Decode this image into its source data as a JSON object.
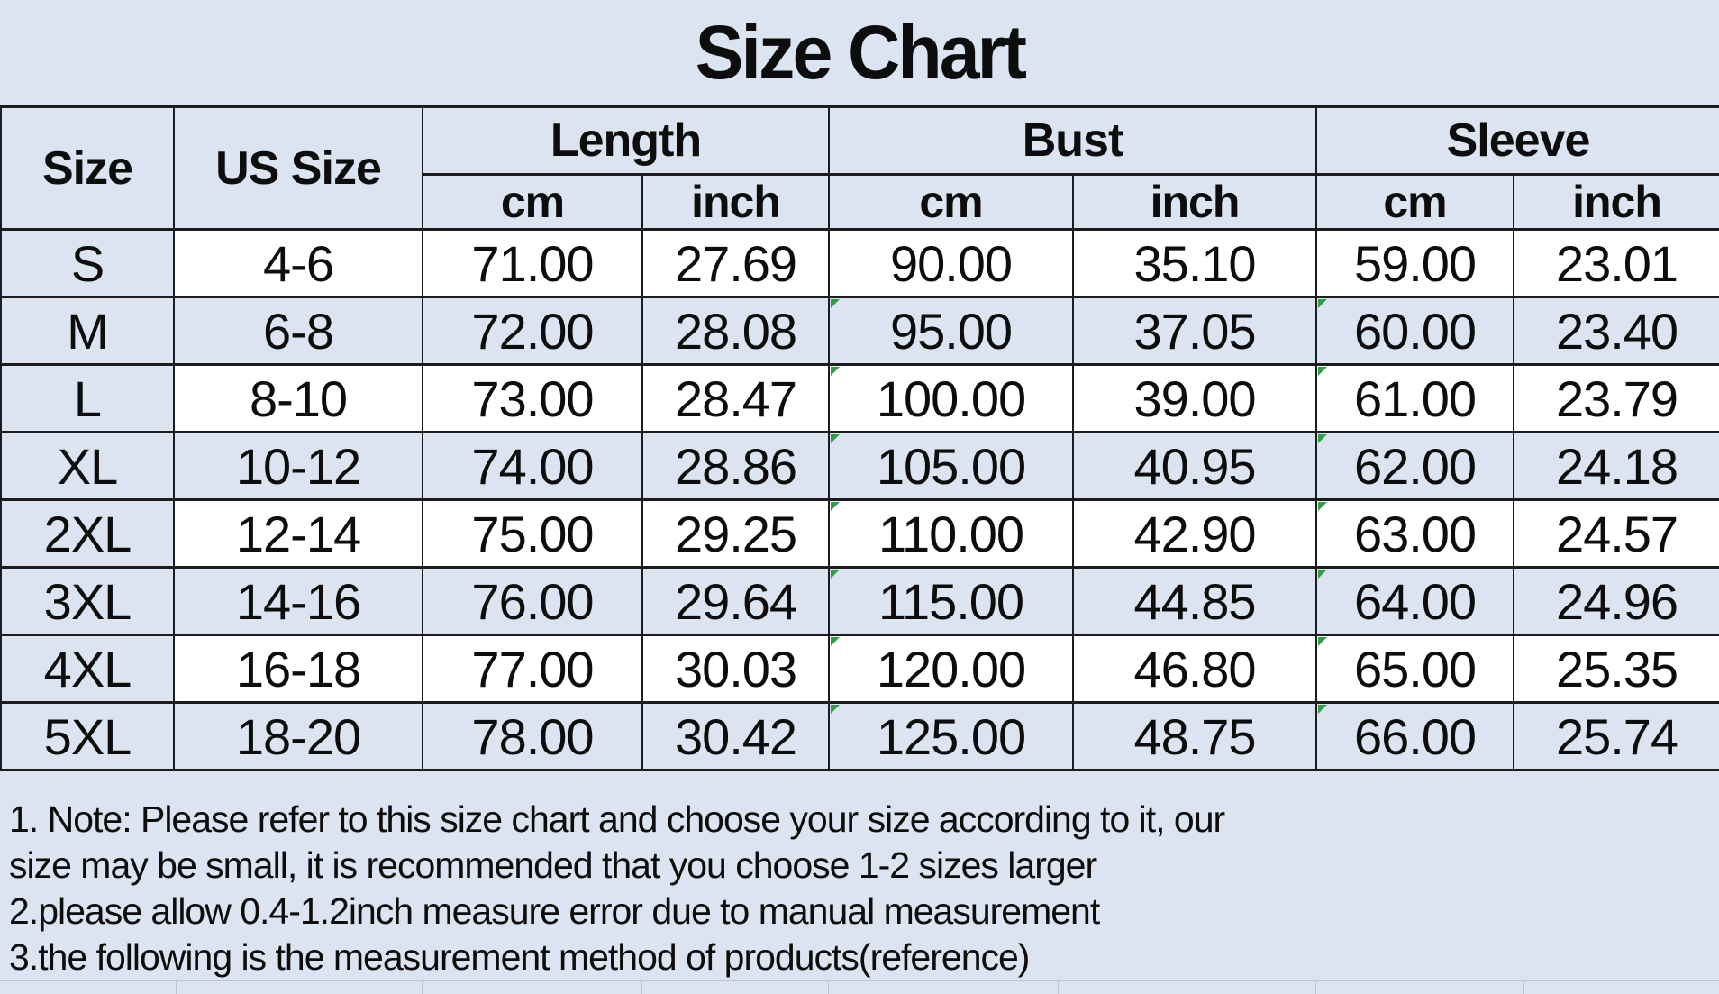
{
  "title": "Size Chart",
  "colors": {
    "background": "#dbe4f0",
    "row_white": "#ffffff",
    "border": "#1c1c1c",
    "faint_grid": "#b9c5d6",
    "flag_green": "#2f9e44",
    "text": "#0d0d0d"
  },
  "table": {
    "headers": {
      "size": "Size",
      "us_size": "US Size",
      "length": "Length",
      "bust": "Bust",
      "sleeve": "Sleeve"
    },
    "sub_headers": [
      "cm",
      "inch",
      "cm",
      "inch",
      "cm",
      "inch"
    ],
    "columns": [
      "size",
      "us_size",
      "length_cm",
      "length_inch",
      "bust_cm",
      "bust_inch",
      "sleeve_cm",
      "sleeve_inch"
    ],
    "flag_columns": [
      "bust_cm",
      "sleeve_cm"
    ],
    "flag_rows_from": 1,
    "rows": [
      {
        "size": "S",
        "us_size": "4-6",
        "length_cm": "71.00",
        "length_inch": "27.69",
        "bust_cm": "90.00",
        "bust_inch": "35.10",
        "sleeve_cm": "59.00",
        "sleeve_inch": "23.01"
      },
      {
        "size": "M",
        "us_size": "6-8",
        "length_cm": "72.00",
        "length_inch": "28.08",
        "bust_cm": "95.00",
        "bust_inch": "37.05",
        "sleeve_cm": "60.00",
        "sleeve_inch": "23.40"
      },
      {
        "size": "L",
        "us_size": "8-10",
        "length_cm": "73.00",
        "length_inch": "28.47",
        "bust_cm": "100.00",
        "bust_inch": "39.00",
        "sleeve_cm": "61.00",
        "sleeve_inch": "23.79"
      },
      {
        "size": "XL",
        "us_size": "10-12",
        "length_cm": "74.00",
        "length_inch": "28.86",
        "bust_cm": "105.00",
        "bust_inch": "40.95",
        "sleeve_cm": "62.00",
        "sleeve_inch": "24.18"
      },
      {
        "size": "2XL",
        "us_size": "12-14",
        "length_cm": "75.00",
        "length_inch": "29.25",
        "bust_cm": "110.00",
        "bust_inch": "42.90",
        "sleeve_cm": "63.00",
        "sleeve_inch": "24.57"
      },
      {
        "size": "3XL",
        "us_size": "14-16",
        "length_cm": "76.00",
        "length_inch": "29.64",
        "bust_cm": "115.00",
        "bust_inch": "44.85",
        "sleeve_cm": "64.00",
        "sleeve_inch": "24.96"
      },
      {
        "size": "4XL",
        "us_size": "16-18",
        "length_cm": "77.00",
        "length_inch": "30.03",
        "bust_cm": "120.00",
        "bust_inch": "46.80",
        "sleeve_cm": "65.00",
        "sleeve_inch": "25.35"
      },
      {
        "size": "5XL",
        "us_size": "18-20",
        "length_cm": "78.00",
        "length_inch": "30.42",
        "bust_cm": "125.00",
        "bust_inch": "48.75",
        "sleeve_cm": "66.00",
        "sleeve_inch": "25.74"
      }
    ]
  },
  "notes": [
    "1. Note: Please refer to this size chart and choose your size according to it, our",
    "size may be small, it is recommended that you choose 1-2 sizes larger",
    "2.please allow 0.4-1.2inch measure error due to manual measurement",
    "3.the following is the measurement method of products(reference)"
  ],
  "chart_data": {
    "type": "table",
    "title": "Size Chart",
    "columns": [
      "Size",
      "US Size",
      "Length cm",
      "Length inch",
      "Bust cm",
      "Bust inch",
      "Sleeve cm",
      "Sleeve inch"
    ],
    "rows": [
      [
        "S",
        "4-6",
        71.0,
        27.69,
        90.0,
        35.1,
        59.0,
        23.01
      ],
      [
        "M",
        "6-8",
        72.0,
        28.08,
        95.0,
        37.05,
        60.0,
        23.4
      ],
      [
        "L",
        "8-10",
        73.0,
        28.47,
        100.0,
        39.0,
        61.0,
        23.79
      ],
      [
        "XL",
        "10-12",
        74.0,
        28.86,
        105.0,
        40.95,
        62.0,
        24.18
      ],
      [
        "2XL",
        "12-14",
        75.0,
        29.25,
        110.0,
        42.9,
        63.0,
        24.57
      ],
      [
        "3XL",
        "14-16",
        76.0,
        29.64,
        115.0,
        44.85,
        64.0,
        24.96
      ],
      [
        "4XL",
        "16-18",
        77.0,
        30.03,
        120.0,
        46.8,
        65.0,
        25.35
      ],
      [
        "5XL",
        "18-20",
        78.0,
        30.42,
        125.0,
        48.75,
        66.0,
        25.74
      ]
    ]
  }
}
